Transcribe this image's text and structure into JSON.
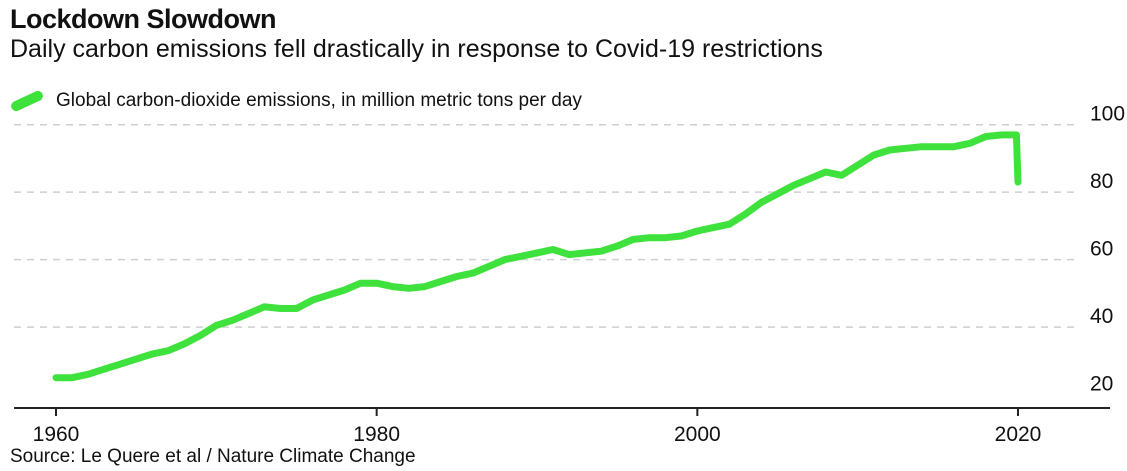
{
  "header": {
    "title": "Lockdown Slowdown",
    "subtitle": "Daily carbon emissions fell drastically in response to Covid-19 restrictions"
  },
  "footer": {
    "source": "Source: Le Quere et al / Nature Climate Change"
  },
  "colors": {
    "line": "#3fe23c",
    "grid": "#cfcfcf",
    "axis": "#222222"
  },
  "chart_data": {
    "type": "line",
    "title": "Lockdown Slowdown",
    "subtitle": "Daily carbon emissions fell drastically in response to Covid-19 restrictions",
    "xlabel": "",
    "ylabel": "",
    "xlim": [
      1959,
      2024
    ],
    "ylim": [
      16,
      102
    ],
    "x_ticks": [
      1960,
      1980,
      2000,
      2020
    ],
    "y_ticks": [
      20,
      40,
      60,
      80,
      100
    ],
    "y_axis_side": "right",
    "grid": "horizontal dashed",
    "legend_placement": "top-left",
    "series": [
      {
        "name": "Global carbon-dioxide emissions, in million metric tons per day",
        "points": [
          {
            "x": 1960,
            "y": 25
          },
          {
            "x": 1961,
            "y": 25
          },
          {
            "x": 1962,
            "y": 26
          },
          {
            "x": 1963,
            "y": 27.5
          },
          {
            "x": 1964,
            "y": 29
          },
          {
            "x": 1965,
            "y": 30.5
          },
          {
            "x": 1966,
            "y": 32
          },
          {
            "x": 1967,
            "y": 33
          },
          {
            "x": 1968,
            "y": 35
          },
          {
            "x": 1969,
            "y": 37.5
          },
          {
            "x": 1970,
            "y": 40.5
          },
          {
            "x": 1971,
            "y": 42
          },
          {
            "x": 1972,
            "y": 44
          },
          {
            "x": 1973,
            "y": 46
          },
          {
            "x": 1974,
            "y": 45.5
          },
          {
            "x": 1975,
            "y": 45.5
          },
          {
            "x": 1976,
            "y": 48
          },
          {
            "x": 1977,
            "y": 49.5
          },
          {
            "x": 1978,
            "y": 51
          },
          {
            "x": 1979,
            "y": 53
          },
          {
            "x": 1980,
            "y": 53
          },
          {
            "x": 1981,
            "y": 52
          },
          {
            "x": 1982,
            "y": 51.5
          },
          {
            "x": 1983,
            "y": 52
          },
          {
            "x": 1984,
            "y": 53.5
          },
          {
            "x": 1985,
            "y": 55
          },
          {
            "x": 1986,
            "y": 56
          },
          {
            "x": 1987,
            "y": 58
          },
          {
            "x": 1988,
            "y": 60
          },
          {
            "x": 1989,
            "y": 61
          },
          {
            "x": 1990,
            "y": 62
          },
          {
            "x": 1991,
            "y": 63
          },
          {
            "x": 1992,
            "y": 61.5
          },
          {
            "x": 1993,
            "y": 62
          },
          {
            "x": 1994,
            "y": 62.5
          },
          {
            "x": 1995,
            "y": 64
          },
          {
            "x": 1996,
            "y": 66
          },
          {
            "x": 1997,
            "y": 66.5
          },
          {
            "x": 1998,
            "y": 66.5
          },
          {
            "x": 1999,
            "y": 67
          },
          {
            "x": 2000,
            "y": 68.5
          },
          {
            "x": 2001,
            "y": 69.5
          },
          {
            "x": 2002,
            "y": 70.5
          },
          {
            "x": 2003,
            "y": 73.5
          },
          {
            "x": 2004,
            "y": 77
          },
          {
            "x": 2005,
            "y": 79.5
          },
          {
            "x": 2006,
            "y": 82
          },
          {
            "x": 2007,
            "y": 84
          },
          {
            "x": 2008,
            "y": 86
          },
          {
            "x": 2009,
            "y": 85
          },
          {
            "x": 2010,
            "y": 88
          },
          {
            "x": 2011,
            "y": 91
          },
          {
            "x": 2012,
            "y": 92.5
          },
          {
            "x": 2013,
            "y": 93
          },
          {
            "x": 2014,
            "y": 93.5
          },
          {
            "x": 2015,
            "y": 93.5
          },
          {
            "x": 2016,
            "y": 93.5
          },
          {
            "x": 2017,
            "y": 94.5
          },
          {
            "x": 2018,
            "y": 96.5
          },
          {
            "x": 2019,
            "y": 97
          },
          {
            "x": 2019.9,
            "y": 97
          },
          {
            "x": 2020,
            "y": 83
          }
        ]
      }
    ]
  }
}
